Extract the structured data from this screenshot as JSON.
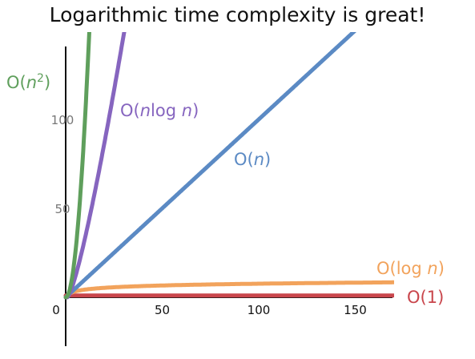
{
  "chart_data": {
    "type": "line",
    "title": "Logarithmic time complexity is great!",
    "xlabel": "",
    "ylabel": "",
    "xlim": [
      0,
      170
    ],
    "ylim": [
      -48,
      125
    ],
    "x_ticks": [
      0,
      50,
      100,
      150
    ],
    "y_ticks": [
      50,
      100
    ],
    "grid": false,
    "series": [
      {
        "name": "O(1)",
        "function": "constant",
        "value": 1,
        "color": "#c9464c"
      },
      {
        "name": "O(log n)",
        "function": "log2",
        "color": "#f2a35c"
      },
      {
        "name": "O(n)",
        "function": "linear",
        "color": "#5b8ac4"
      },
      {
        "name": "O(nlog n)",
        "function": "nlog2n",
        "color": "#8665bf"
      },
      {
        "name": "O(n^2)",
        "function": "square",
        "color": "#5f9f5c"
      }
    ],
    "labels": [
      {
        "main": "O(1)",
        "color": "#c9464c"
      },
      {
        "main": "O(log n)",
        "color": "#f2a35c"
      },
      {
        "main": "O(n)",
        "color": "#5b8ac4"
      },
      {
        "main": "O(nlog n)",
        "color": "#8665bf"
      },
      {
        "main": "O(n2)",
        "color": "#5f9f5c"
      }
    ]
  }
}
